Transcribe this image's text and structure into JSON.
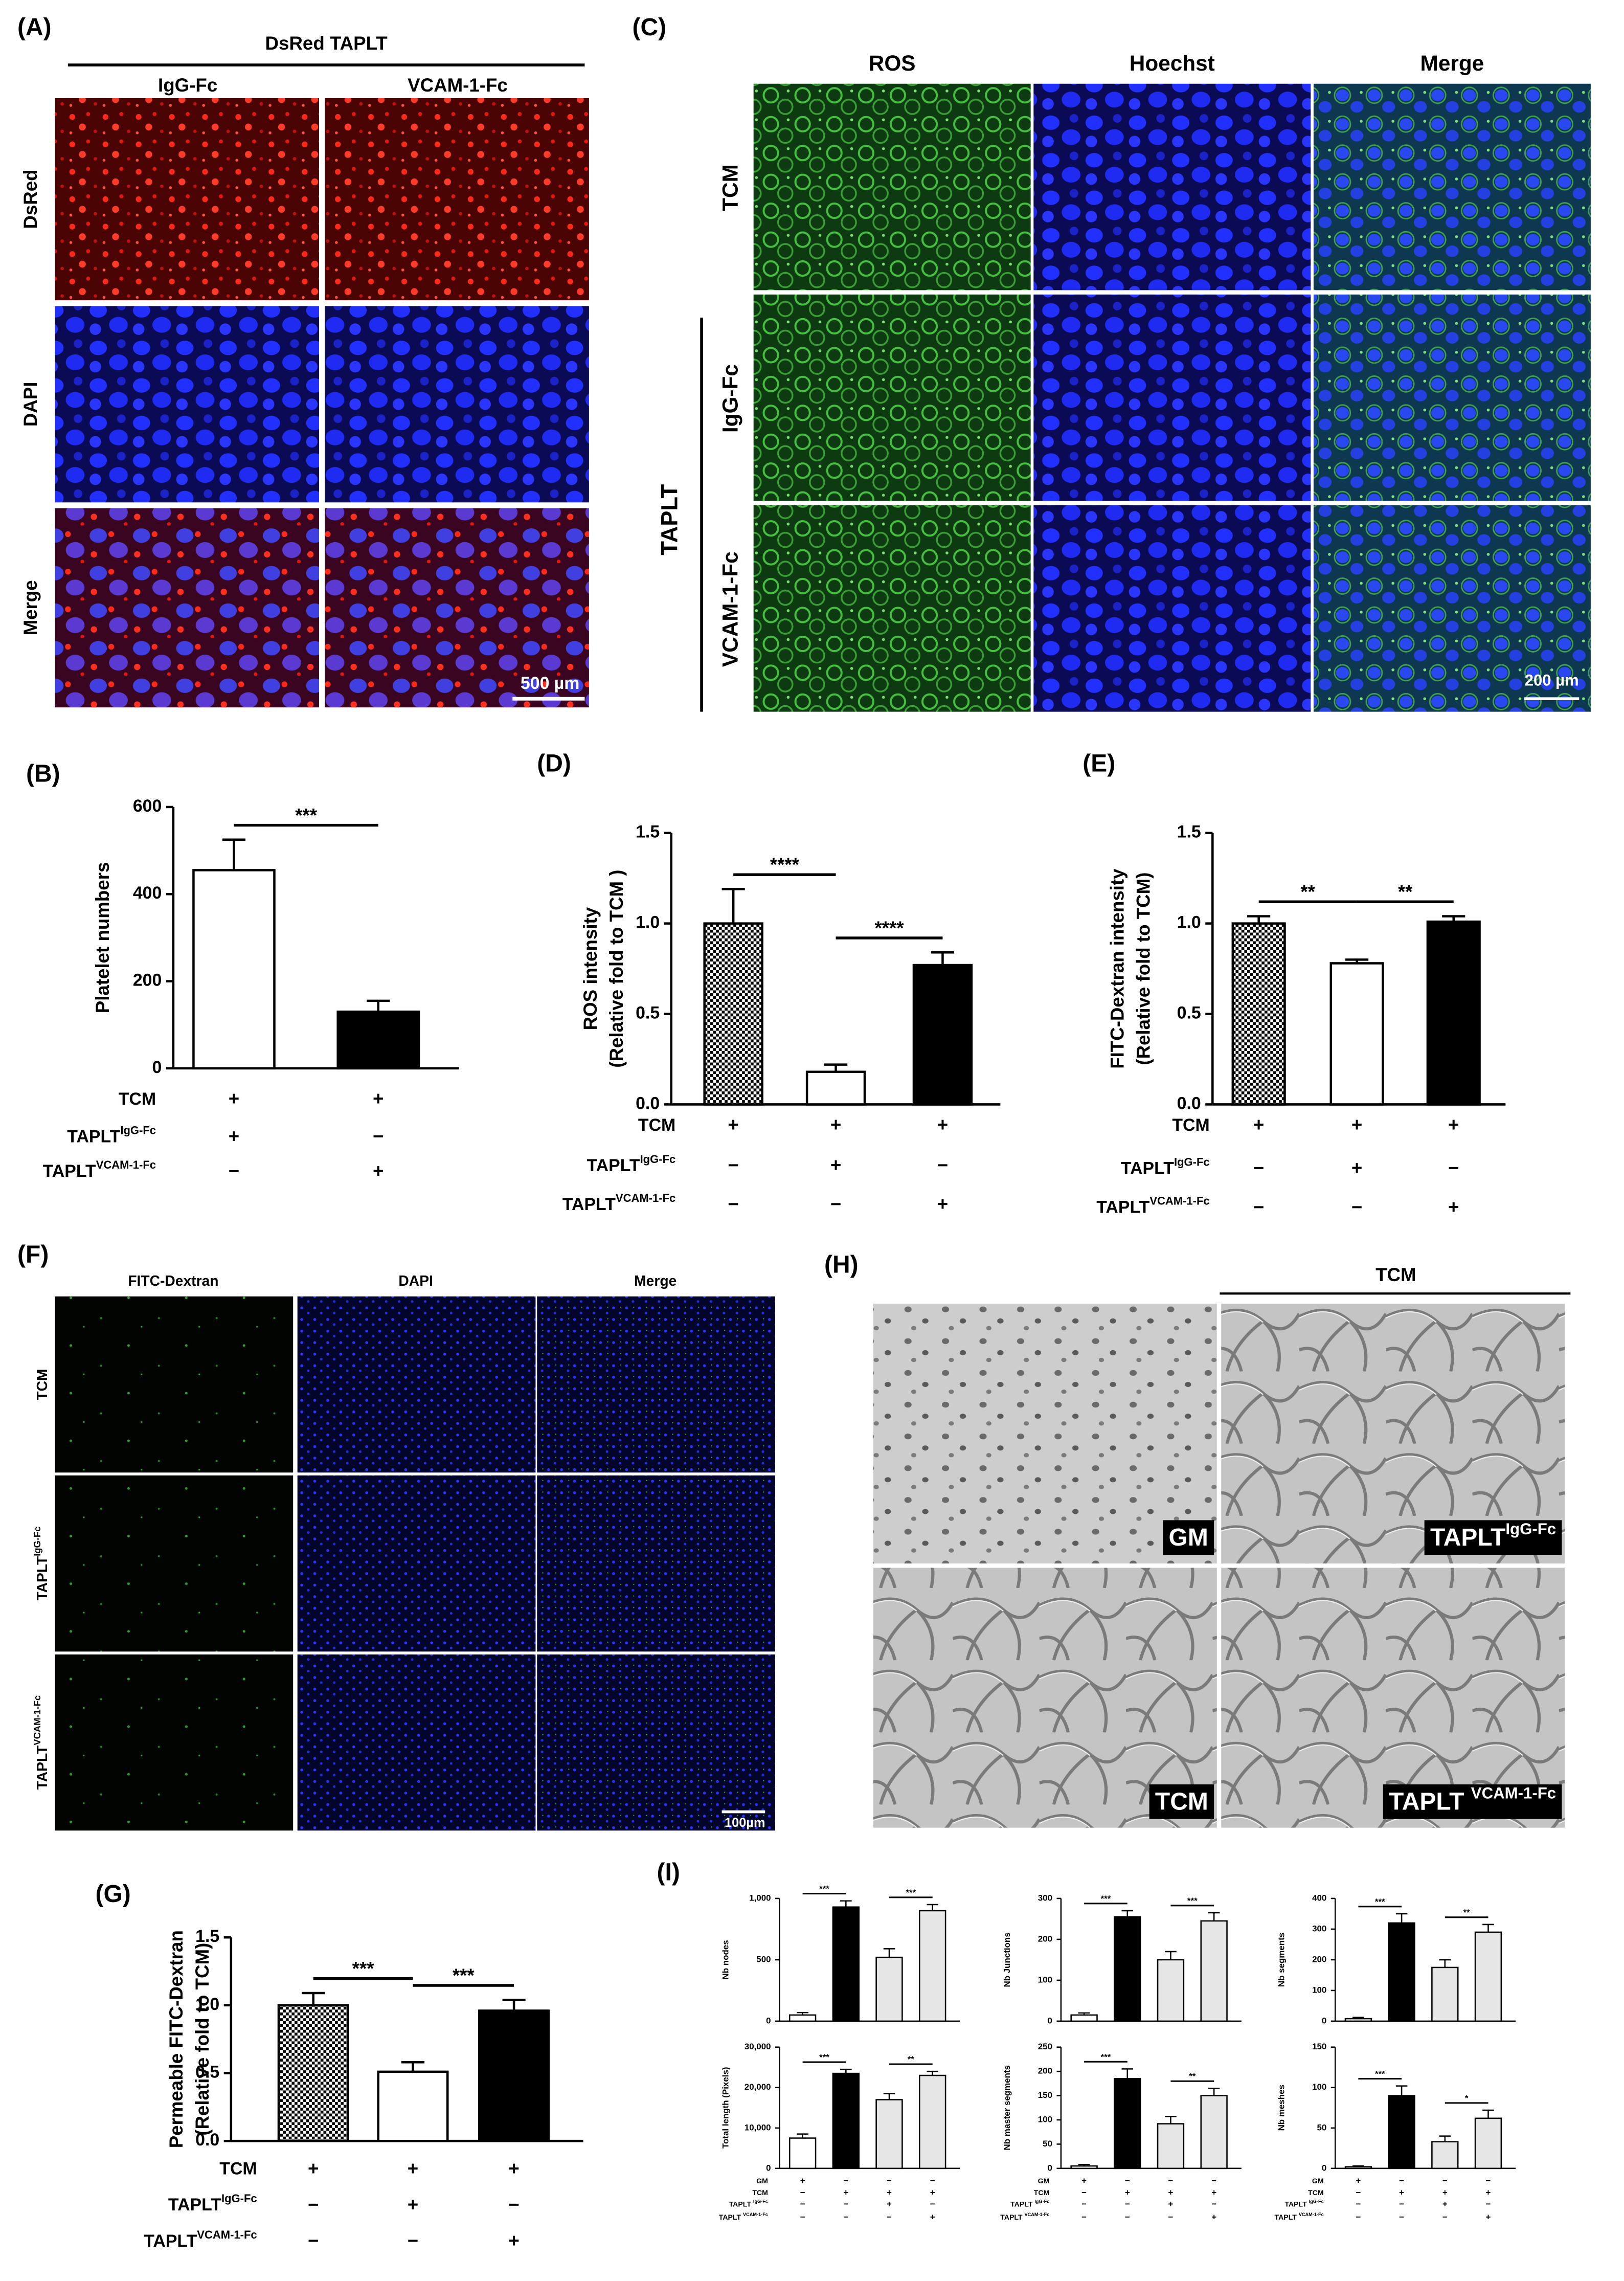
{
  "panels": {
    "A": {
      "label": "(A)",
      "header": "DsRed TAPLT",
      "columns": [
        "IgG-Fc",
        "VCAM-1-Fc"
      ],
      "rows": [
        "DsRed",
        "DAPI",
        "Merge"
      ],
      "scale_bar": "500 µm"
    },
    "C": {
      "label": "(C)",
      "columns": [
        "ROS",
        "Hoechst",
        "Merge"
      ],
      "rows": [
        "TCM",
        "IgG-Fc",
        "VCAM-1-Fc"
      ],
      "group": "TAPLT",
      "scale_bar": "200 µm"
    },
    "F": {
      "label": "(F)",
      "columns": [
        "FITC-Dextran",
        "DAPI",
        "Merge"
      ],
      "rows": [
        {
          "text": "TCM"
        },
        {
          "text": "TAPLT",
          "sup": "IgG-Fc"
        },
        {
          "text": "TAPLT",
          "sup": "VCAM-1-Fc"
        }
      ],
      "scale_bar": "100µm"
    },
    "H": {
      "label": "(H)",
      "header": "TCM",
      "images": [
        {
          "text": "GM"
        },
        {
          "text": "TAPLT",
          "sup": "IgG-Fc"
        },
        {
          "text": "TCM"
        },
        {
          "text": "TAPLT ",
          "sup": "VCAM-1-Fc"
        }
      ]
    },
    "I": {
      "label": "(I)"
    }
  },
  "chart_data": [
    {
      "type": "bar",
      "panel": "(B)",
      "ylabel": [
        "Platelet numbers"
      ],
      "values": [
        455,
        130
      ],
      "errors": [
        70,
        25
      ],
      "fills": [
        "white",
        "black"
      ],
      "ylim": [
        0,
        600
      ],
      "yticks": [
        0,
        200,
        400,
        600
      ],
      "significance": [
        "***"
      ],
      "conditions": [
        {
          "label": "TCM",
          "signs": [
            "+",
            "+"
          ]
        },
        {
          "label": "TAPLT",
          "sup": "IgG-Fc",
          "signs": [
            "+",
            "−"
          ]
        },
        {
          "label": "TAPLT",
          "sup": "VCAM-1-Fc",
          "signs": [
            "−",
            "+"
          ]
        }
      ]
    },
    {
      "type": "bar",
      "panel": "(D)",
      "ylabel": [
        "ROS intensity",
        "(Relative fold to TCM )"
      ],
      "values": [
        1.0,
        0.18,
        0.77
      ],
      "errors": [
        0.19,
        0.04,
        0.07
      ],
      "fills": [
        "checker",
        "white",
        "black"
      ],
      "ylim": [
        0,
        1.5
      ],
      "yticks": [
        {
          "value": 0,
          "label": "0.0"
        },
        0.5,
        {
          "value": 1,
          "label": "1.0"
        },
        1.5
      ],
      "significance": [
        "****",
        "****"
      ],
      "conditions": [
        {
          "label": "TCM",
          "signs": [
            "+",
            "+",
            "+"
          ]
        },
        {
          "label": "TAPLT",
          "sup": "IgG-Fc",
          "signs": [
            "−",
            "+",
            "−"
          ]
        },
        {
          "label": "TAPLT",
          "sup": "VCAM-1-Fc",
          "signs": [
            "−",
            "−",
            "+"
          ]
        }
      ]
    },
    {
      "type": "bar",
      "panel": "(E)",
      "ylabel": [
        "FITC-Dextran intensity",
        "(Relative fold to TCM)"
      ],
      "values": [
        1.0,
        0.78,
        1.01
      ],
      "errors": [
        0.04,
        0.02,
        0.03
      ],
      "fills": [
        "checker",
        "white",
        "black"
      ],
      "ylim": [
        0,
        1.5
      ],
      "yticks": [
        {
          "value": 0,
          "label": "0.0"
        },
        0.5,
        {
          "value": 1,
          "label": "1.0"
        },
        1.5
      ],
      "significance": [
        "**",
        "**"
      ],
      "conditions": [
        {
          "label": "TCM",
          "signs": [
            "+",
            "+",
            "+"
          ]
        },
        {
          "label": "TAPLT",
          "sup": "IgG-Fc",
          "signs": [
            "−",
            "+",
            "−"
          ]
        },
        {
          "label": "TAPLT",
          "sup": "VCAM-1-Fc",
          "signs": [
            "−",
            "−",
            "+"
          ]
        }
      ]
    },
    {
      "type": "bar",
      "panel": "(G)",
      "ylabel": [
        "Permeable FITC-Dextran",
        "(Relative fold to TCM)"
      ],
      "values": [
        1.0,
        0.51,
        0.96
      ],
      "errors": [
        0.09,
        0.07,
        0.08
      ],
      "fills": [
        "checker",
        "white",
        "black"
      ],
      "ylim": [
        0,
        1.5
      ],
      "yticks": [
        {
          "value": 0,
          "label": "0.0"
        },
        0.5,
        {
          "value": 1,
          "label": "1.0"
        },
        1.5
      ],
      "significance": [
        "***",
        "***"
      ],
      "conditions": [
        {
          "label": "TCM",
          "signs": [
            "+",
            "+",
            "+"
          ]
        },
        {
          "label": "TAPLT",
          "sup": "IgG-Fc",
          "signs": [
            "−",
            "+",
            "−"
          ]
        },
        {
          "label": "TAPLT",
          "sup": "VCAM-1-Fc",
          "signs": [
            "−",
            "−",
            "+"
          ]
        }
      ]
    },
    {
      "type": "bar",
      "ylabel": [
        "Nb nodes"
      ],
      "values": [
        50,
        930,
        520,
        900
      ],
      "errors": [
        20,
        50,
        70,
        50
      ],
      "fills": [
        "white",
        "black",
        "lightgray",
        "lightgray"
      ],
      "ylim": [
        0,
        1000
      ],
      "yticks": [
        0,
        500,
        {
          "value": 1000,
          "label": "1,000"
        }
      ],
      "significance": [
        "***",
        "***"
      ]
    },
    {
      "type": "bar",
      "ylabel": [
        "Nb Junctions"
      ],
      "values": [
        15,
        255,
        150,
        245
      ],
      "errors": [
        5,
        15,
        20,
        20
      ],
      "fills": [
        "white",
        "black",
        "lightgray",
        "lightgray"
      ],
      "ylim": [
        0,
        300
      ],
      "yticks": [
        0,
        100,
        200,
        300
      ],
      "significance": [
        "***",
        "***"
      ]
    },
    {
      "type": "bar",
      "ylabel": [
        "Nb segments"
      ],
      "values": [
        8,
        320,
        175,
        290
      ],
      "errors": [
        4,
        30,
        25,
        25
      ],
      "fills": [
        "white",
        "black",
        "lightgray",
        "lightgray"
      ],
      "ylim": [
        0,
        400
      ],
      "yticks": [
        0,
        100,
        200,
        300,
        400
      ],
      "significance": [
        "***",
        "**"
      ]
    },
    {
      "type": "bar",
      "ylabel": [
        "Total length (Pixels)"
      ],
      "values": [
        7500,
        23500,
        17000,
        23000
      ],
      "errors": [
        1000,
        1000,
        1500,
        1000
      ],
      "fills": [
        "white",
        "black",
        "lightgray",
        "lightgray"
      ],
      "ylim": [
        0,
        30000
      ],
      "yticks": [
        0,
        {
          "value": 10000,
          "label": "10,000"
        },
        {
          "value": 20000,
          "label": "20,000"
        },
        {
          "value": 30000,
          "label": "30,000"
        }
      ],
      "significance": [
        "***",
        "**"
      ],
      "conditions": [
        {
          "label": "GM",
          "signs": [
            "+",
            "−",
            "−",
            "−"
          ]
        },
        {
          "label": "TCM",
          "signs": [
            "−",
            "+",
            "+",
            "+"
          ]
        },
        {
          "label": "TAPLT ",
          "sup": "IgG-Fc",
          "signs": [
            "−",
            "−",
            "+",
            "−"
          ]
        },
        {
          "label": "TAPLT ",
          "sup": "VCAM-1-Fc",
          "signs": [
            "−",
            "−",
            "−",
            "+"
          ]
        }
      ]
    },
    {
      "type": "bar",
      "ylabel": [
        "Nb master segments"
      ],
      "values": [
        5,
        185,
        92,
        150
      ],
      "errors": [
        3,
        20,
        15,
        15
      ],
      "fills": [
        "white",
        "black",
        "lightgray",
        "lightgray"
      ],
      "ylim": [
        0,
        250
      ],
      "yticks": [
        0,
        50,
        100,
        150,
        200,
        250
      ],
      "significance": [
        "***",
        "**"
      ],
      "conditions": [
        {
          "label": "GM",
          "signs": [
            "+",
            "−",
            "−",
            "−"
          ]
        },
        {
          "label": "TCM",
          "signs": [
            "−",
            "+",
            "+",
            "+"
          ]
        },
        {
          "label": "TAPLT ",
          "sup": "IgG-Fc",
          "signs": [
            "−",
            "−",
            "+",
            "−"
          ]
        },
        {
          "label": "TAPLT ",
          "sup": "VCAM-1-Fc",
          "signs": [
            "−",
            "−",
            "−",
            "+"
          ]
        }
      ]
    },
    {
      "type": "bar",
      "ylabel": [
        "Nb meshes"
      ],
      "values": [
        2,
        90,
        33,
        62
      ],
      "errors": [
        1,
        12,
        7,
        10
      ],
      "fills": [
        "white",
        "black",
        "lightgray",
        "lightgray"
      ],
      "ylim": [
        0,
        150
      ],
      "yticks": [
        0,
        50,
        100,
        150
      ],
      "significance": [
        "***",
        "*"
      ],
      "conditions": [
        {
          "label": "GM",
          "signs": [
            "+",
            "−",
            "−",
            "−"
          ]
        },
        {
          "label": "TCM",
          "signs": [
            "−",
            "+",
            "+",
            "+"
          ]
        },
        {
          "label": "TAPLT ",
          "sup": "IgG-Fc",
          "signs": [
            "−",
            "−",
            "+",
            "−"
          ]
        },
        {
          "label": "TAPLT ",
          "sup": "VCAM-1-Fc",
          "signs": [
            "−",
            "−",
            "−",
            "+"
          ]
        }
      ]
    }
  ]
}
